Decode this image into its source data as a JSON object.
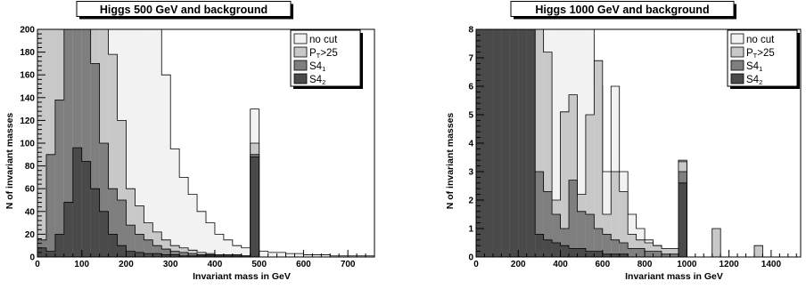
{
  "colors": {
    "no_cut": "#f2f2f2",
    "pt25": "#c8c8c8",
    "s41": "#7f7f7f",
    "s42": "#4a4a4a"
  },
  "chart_data": [
    {
      "type": "histogram",
      "title": "Higgs 500 GeV and background",
      "xlabel": "Invariant mass in GeV",
      "ylabel": "N of invariant masses",
      "xlim": [
        0,
        760
      ],
      "ylim": [
        0,
        200
      ],
      "xticks": [
        0,
        100,
        200,
        300,
        400,
        500,
        600,
        700
      ],
      "yticks": [
        0,
        20,
        40,
        60,
        80,
        100,
        120,
        140,
        160,
        180,
        200
      ],
      "legend_position": "top-right",
      "bin_width": 20,
      "series": [
        {
          "name": "no cut",
          "sup": "",
          "sub": "",
          "color_key": "no_cut",
          "values": [
            200,
            200,
            200,
            200,
            200,
            200,
            200,
            200,
            200,
            200,
            200,
            200,
            200,
            200,
            160,
            95,
            70,
            55,
            40,
            30,
            20,
            15,
            10,
            8,
            130,
            5,
            4,
            4,
            3,
            3,
            2,
            2,
            2,
            1,
            1,
            1,
            1,
            1,
            0,
            0
          ]
        },
        {
          "name": "P",
          "sup": "",
          "sub": "T",
          "suffix": ">25",
          "color_key": "pt25",
          "values": [
            200,
            200,
            200,
            200,
            200,
            200,
            200,
            200,
            178,
            120,
            60,
            45,
            30,
            22,
            15,
            10,
            8,
            6,
            4,
            3,
            2,
            2,
            2,
            1,
            100,
            0,
            0,
            0,
            0,
            0,
            0,
            0,
            0,
            0,
            0,
            0,
            0,
            0,
            0,
            0
          ]
        },
        {
          "name": "S4",
          "sup": "",
          "sub": "1",
          "suffix": "",
          "color_key": "s41",
          "values": [
            15,
            90,
            138,
            200,
            200,
            200,
            170,
            100,
            60,
            50,
            28,
            20,
            15,
            10,
            7,
            5,
            4,
            3,
            2,
            2,
            1,
            1,
            1,
            1,
            90,
            0,
            0,
            0,
            0,
            0,
            0,
            0,
            0,
            0,
            0,
            0,
            0,
            0,
            0,
            0
          ]
        },
        {
          "name": "S4",
          "sup": "",
          "sub": "2",
          "suffix": "",
          "color_key": "s42",
          "values": [
            8,
            5,
            20,
            48,
            96,
            84,
            60,
            40,
            20,
            10,
            5,
            4,
            3,
            3,
            2,
            2,
            1,
            1,
            1,
            1,
            1,
            1,
            1,
            1,
            88,
            0,
            0,
            0,
            0,
            0,
            0,
            0,
            0,
            0,
            0,
            0,
            0,
            0,
            0,
            0
          ]
        }
      ]
    },
    {
      "type": "histogram",
      "title": "Higgs 1000 GeV and background",
      "xlabel": "Invariant mass in GeV",
      "ylabel": "N of invariant masses",
      "xlim": [
        0,
        1540
      ],
      "ylim": [
        0,
        8
      ],
      "xticks": [
        0,
        200,
        400,
        600,
        800,
        1000,
        1200,
        1400
      ],
      "yticks": [
        0,
        1,
        2,
        3,
        4,
        5,
        6,
        7,
        8
      ],
      "legend_position": "top-right",
      "bin_width": 40,
      "series": [
        {
          "name": "no cut",
          "sup": "",
          "sub": "",
          "color_key": "no_cut",
          "values": [
            8,
            8,
            8,
            8,
            8,
            8,
            8,
            8,
            8,
            8,
            8,
            8,
            8,
            8,
            6,
            3,
            6,
            3,
            1.5,
            1,
            0.6,
            0.4,
            0.3,
            0.3,
            3.4,
            0,
            0,
            0,
            0,
            0,
            0,
            0,
            0,
            0,
            0,
            0,
            0,
            0,
            0
          ]
        },
        {
          "name": "P",
          "sup": "",
          "sub": "T",
          "suffix": ">25",
          "color_key": "pt25",
          "values": [
            8,
            8,
            8,
            8,
            8,
            8,
            8,
            8,
            7.2,
            2,
            5.1,
            5.7,
            2.2,
            5,
            6.9,
            1.5,
            3,
            2.3,
            0.8,
            0.6,
            0.5,
            0.4,
            0.3,
            0.3,
            3.35,
            0,
            0,
            0,
            1,
            0,
            0,
            0,
            0,
            0.4,
            0,
            0,
            0,
            0,
            0
          ]
        },
        {
          "name": "S4",
          "sup": "",
          "sub": "1",
          "suffix": "",
          "color_key": "s41",
          "values": [
            8,
            8,
            8,
            8,
            8,
            8,
            8,
            3,
            2.3,
            1.5,
            1,
            2.7,
            1.6,
            1.5,
            1,
            0.8,
            0.6,
            0.5,
            0.3,
            0.3,
            0.2,
            0.2,
            0.1,
            0.1,
            3,
            0,
            0,
            0,
            0,
            0,
            0,
            0,
            0,
            0,
            0,
            0,
            0,
            0,
            0
          ]
        },
        {
          "name": "S4",
          "sup": "",
          "sub": "2",
          "suffix": "",
          "color_key": "s42",
          "values": [
            8,
            8,
            8,
            8,
            8,
            8,
            8,
            0.8,
            0.6,
            0.5,
            0.4,
            0.3,
            0.3,
            0.2,
            0.2,
            0.1,
            0.1,
            0.1,
            0,
            0,
            0,
            0,
            0,
            0,
            2.6,
            0,
            0,
            0,
            0,
            0,
            0,
            0,
            0,
            0,
            0,
            0,
            0,
            0,
            0
          ]
        }
      ]
    }
  ]
}
